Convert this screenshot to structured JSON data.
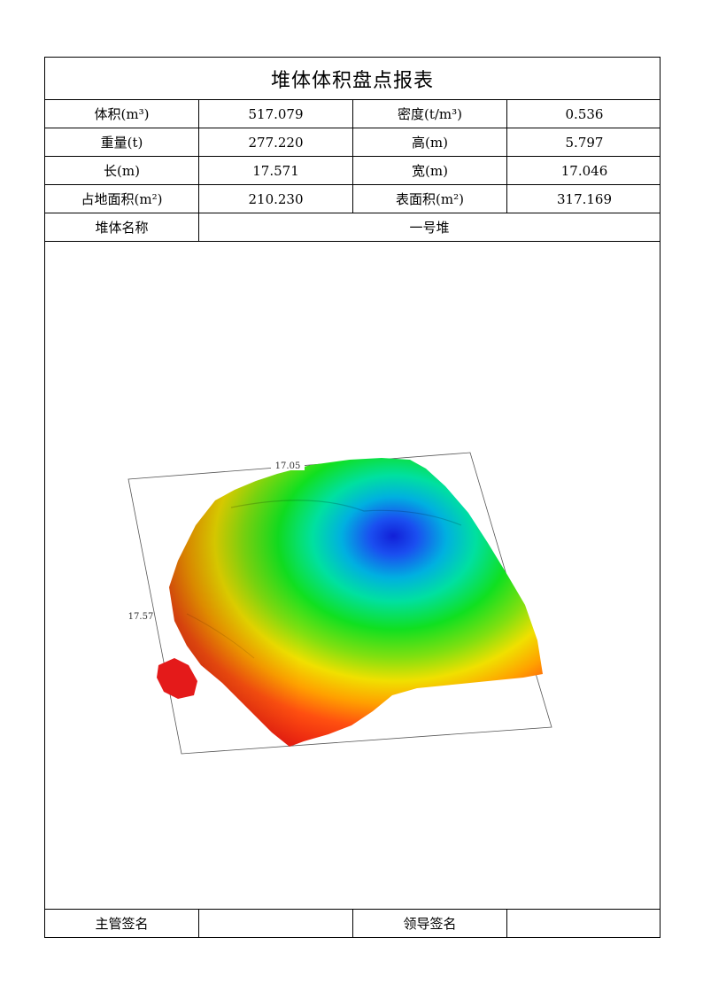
{
  "report": {
    "title": "堆体体积盘点报表",
    "rows": [
      [
        {
          "label": "体积(m³)",
          "value": "517.079"
        },
        {
          "label": "密度(t/m³)",
          "value": "0.536"
        }
      ],
      [
        {
          "label": "重量(t)",
          "value": "277.220"
        },
        {
          "label": "高(m)",
          "value": "5.797"
        }
      ],
      [
        {
          "label": "长(m)",
          "value": "17.571"
        },
        {
          "label": "宽(m)",
          "value": "17.046"
        }
      ],
      [
        {
          "label": "占地面积(m²)",
          "value": "210.230"
        },
        {
          "label": "表面积(m²)",
          "value": "317.169"
        }
      ]
    ],
    "pile_name_label": "堆体名称",
    "pile_name_value": "一号堆"
  },
  "model_view": {
    "width_dimension": "17.05",
    "length_dimension": "17.57"
  },
  "signatures": {
    "supervisor_label": "主管签名",
    "supervisor_value": "",
    "leader_label": "领导签名",
    "leader_value": ""
  }
}
